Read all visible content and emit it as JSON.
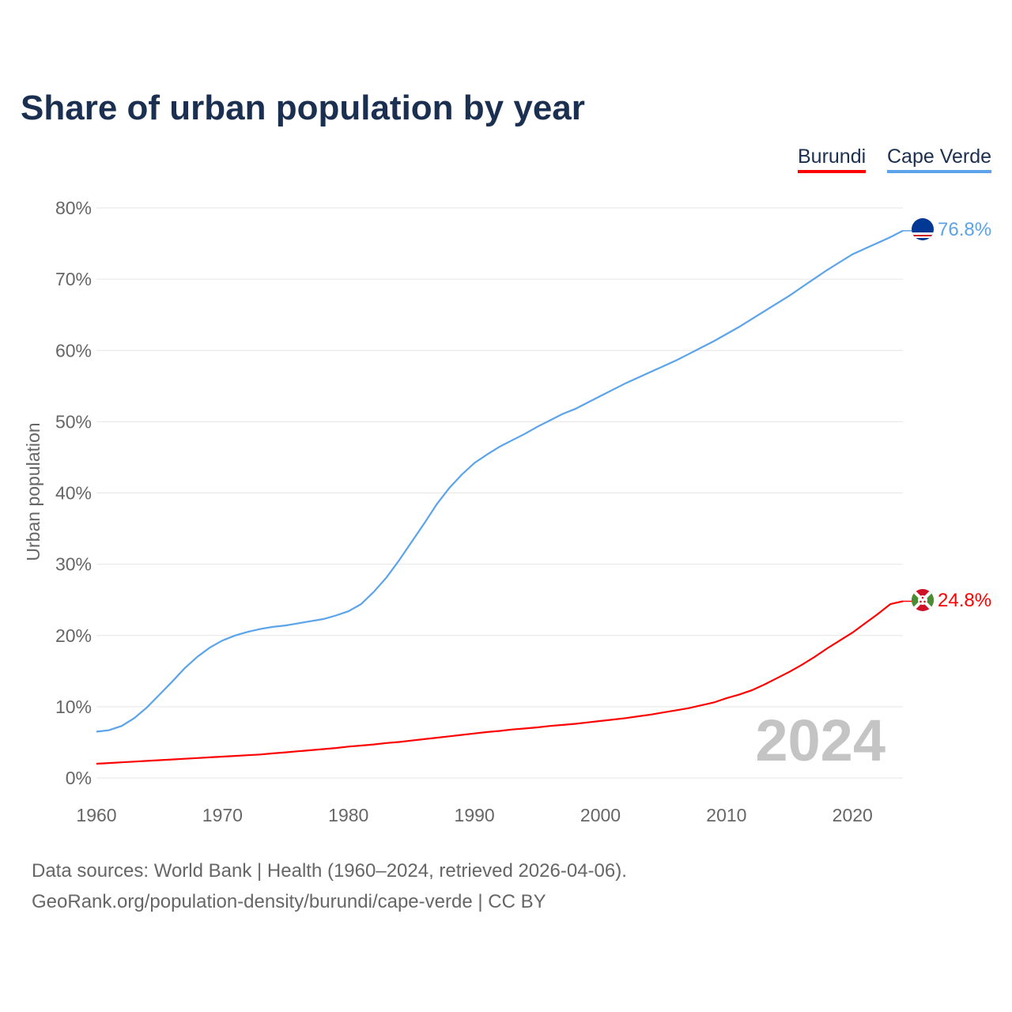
{
  "chart_data": {
    "type": "line",
    "title": "Share of urban population by year",
    "xlabel": "",
    "ylabel": "Urban population",
    "xlim": [
      1960,
      2024
    ],
    "ylim": [
      0,
      80
    ],
    "x_ticks": [
      "1960",
      "1970",
      "1980",
      "1990",
      "2000",
      "2010",
      "2020"
    ],
    "y_ticks": [
      "0%",
      "10%",
      "20%",
      "30%",
      "40%",
      "50%",
      "60%",
      "70%",
      "80%"
    ],
    "grid": true,
    "legend_position": "top-right",
    "year_watermark": "2024",
    "x": [
      1960,
      1961,
      1962,
      1963,
      1964,
      1965,
      1966,
      1967,
      1968,
      1969,
      1970,
      1971,
      1972,
      1973,
      1974,
      1975,
      1976,
      1977,
      1978,
      1979,
      1980,
      1981,
      1982,
      1983,
      1984,
      1985,
      1986,
      1987,
      1988,
      1989,
      1990,
      1991,
      1992,
      1993,
      1994,
      1995,
      1996,
      1997,
      1998,
      1999,
      2000,
      2001,
      2002,
      2003,
      2004,
      2005,
      2006,
      2007,
      2008,
      2009,
      2010,
      2011,
      2012,
      2013,
      2014,
      2015,
      2016,
      2017,
      2018,
      2019,
      2020,
      2021,
      2022,
      2023,
      2024
    ],
    "series": [
      {
        "name": "Burundi",
        "color": "#ff0000",
        "end_label": "24.8%",
        "values": [
          2.0,
          2.1,
          2.2,
          2.3,
          2.4,
          2.5,
          2.6,
          2.7,
          2.8,
          2.9,
          3.0,
          3.1,
          3.2,
          3.3,
          3.45,
          3.6,
          3.75,
          3.9,
          4.05,
          4.2,
          4.4,
          4.55,
          4.7,
          4.9,
          5.05,
          5.25,
          5.45,
          5.65,
          5.85,
          6.05,
          6.25,
          6.45,
          6.6,
          6.8,
          6.95,
          7.1,
          7.3,
          7.45,
          7.6,
          7.8,
          8.0,
          8.2,
          8.4,
          8.65,
          8.9,
          9.2,
          9.5,
          9.8,
          10.2,
          10.6,
          11.2,
          11.7,
          12.3,
          13.1,
          14.0,
          14.9,
          15.9,
          17.0,
          18.2,
          19.3,
          20.4,
          21.7,
          23.0,
          24.4,
          24.8
        ]
      },
      {
        "name": "Cape Verde",
        "color": "#5ba3ea",
        "end_label": "76.8%",
        "values": [
          6.5,
          6.7,
          7.3,
          8.4,
          9.9,
          11.7,
          13.5,
          15.4,
          17.0,
          18.3,
          19.3,
          20.0,
          20.5,
          20.9,
          21.2,
          21.4,
          21.7,
          22.0,
          22.3,
          22.8,
          23.4,
          24.4,
          26.1,
          28.1,
          30.5,
          33.1,
          35.7,
          38.4,
          40.7,
          42.6,
          44.2,
          45.4,
          46.5,
          47.4,
          48.3,
          49.3,
          50.2,
          51.1,
          51.8,
          52.7,
          53.6,
          54.5,
          55.4,
          56.2,
          57.0,
          57.8,
          58.6,
          59.5,
          60.4,
          61.3,
          62.3,
          63.3,
          64.4,
          65.5,
          66.6,
          67.7,
          68.9,
          70.1,
          71.3,
          72.4,
          73.5,
          74.3,
          75.1,
          75.9,
          76.8
        ]
      }
    ]
  },
  "footer": {
    "line1": "Data sources: World Bank | Health (1960–2024, retrieved 2026-04-06).",
    "line2": "GeoRank.org/population-density/burundi/cape-verde | CC BY"
  }
}
